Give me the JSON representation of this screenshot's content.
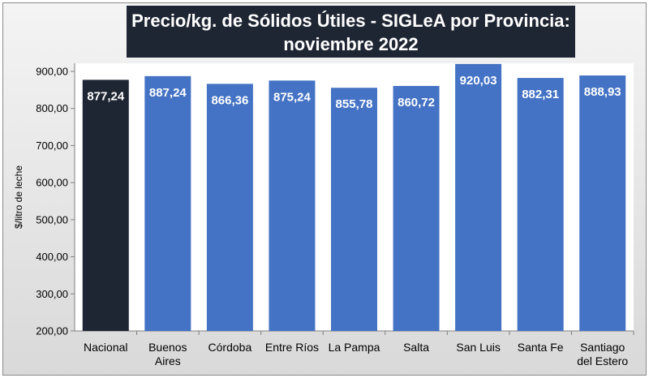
{
  "chart_data": {
    "type": "bar",
    "title_line1": "Precio/kg. de Sólidos Útiles - SIGLeA por Provincia:",
    "title_line2": "noviembre 2022",
    "xlabel": "",
    "ylabel": "$/litro de leche",
    "ylim": [
      200,
      920
    ],
    "yticks": [
      {
        "value": 200,
        "label": "200,00"
      },
      {
        "value": 300,
        "label": "300,00"
      },
      {
        "value": 400,
        "label": "400,00"
      },
      {
        "value": 500,
        "label": "500,00"
      },
      {
        "value": 600,
        "label": "600,00"
      },
      {
        "value": 700,
        "label": "700,00"
      },
      {
        "value": 800,
        "label": "800,00"
      },
      {
        "value": 900,
        "label": "900,00"
      }
    ],
    "categories": [
      [
        "Nacional"
      ],
      [
        "Buenos",
        "Aires"
      ],
      [
        "Córdoba"
      ],
      [
        "Entre Ríos"
      ],
      [
        "La Pampa"
      ],
      [
        "Salta"
      ],
      [
        "San Luis"
      ],
      [
        "Santa Fe"
      ],
      [
        "Santiago",
        "del Estero"
      ]
    ],
    "values": [
      877.24,
      887.24,
      866.36,
      875.24,
      855.78,
      860.72,
      920.03,
      882.31,
      888.93
    ],
    "value_labels": [
      "877,24",
      "887,24",
      "866,36",
      "875,24",
      "855,78",
      "860,72",
      "920,03",
      "882,31",
      "888,93"
    ],
    "colors": [
      "#1f2633",
      "#4472c4",
      "#4472c4",
      "#4472c4",
      "#4472c4",
      "#4472c4",
      "#4472c4",
      "#4472c4",
      "#4472c4"
    ],
    "grid": false
  }
}
